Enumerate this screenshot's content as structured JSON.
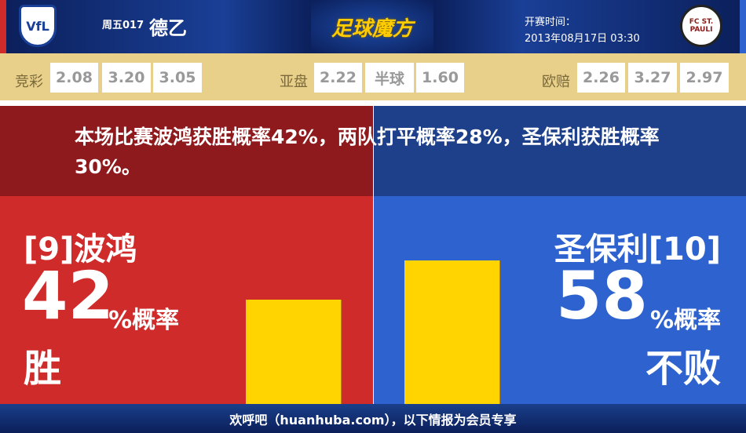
{
  "header": {
    "match_no": "周五017",
    "league": "德乙",
    "brand": "足球魔方",
    "kickoff_label": "开赛时间：",
    "kickoff_time": "2013年08月17日 03:30",
    "home_logo": "VfL Bochum 1848",
    "away_logo": "FC St. Pauli 1910"
  },
  "odds": {
    "jingcai": {
      "label": "竞彩",
      "values": [
        "2.08",
        "3.20",
        "3.05"
      ]
    },
    "yapan": {
      "label": "亚盘",
      "values": [
        "2.22",
        "半球",
        "1.60"
      ]
    },
    "oupei": {
      "label": "欧赔",
      "values": [
        "2.26",
        "3.27",
        "2.97"
      ]
    }
  },
  "message": "本场比赛波鸿获胜概率42%，两队打平概率28%，圣保利获胜概率30%。",
  "home": {
    "team": "[9]波鸿",
    "percent": 42,
    "percent_text": "42",
    "pct_label": "%概率",
    "result": "胜"
  },
  "away": {
    "team": "圣保利[10]",
    "percent": 58,
    "percent_text": "58",
    "pct_label": "%概率",
    "result": "不败"
  },
  "colors": {
    "home": "#d02b2b",
    "away": "#2d62cf",
    "bar": "#ffd400",
    "odds_bg": "#e9d08a"
  },
  "footer": "欢呼吧（huanhuba.com），以下情报为会员专享"
}
